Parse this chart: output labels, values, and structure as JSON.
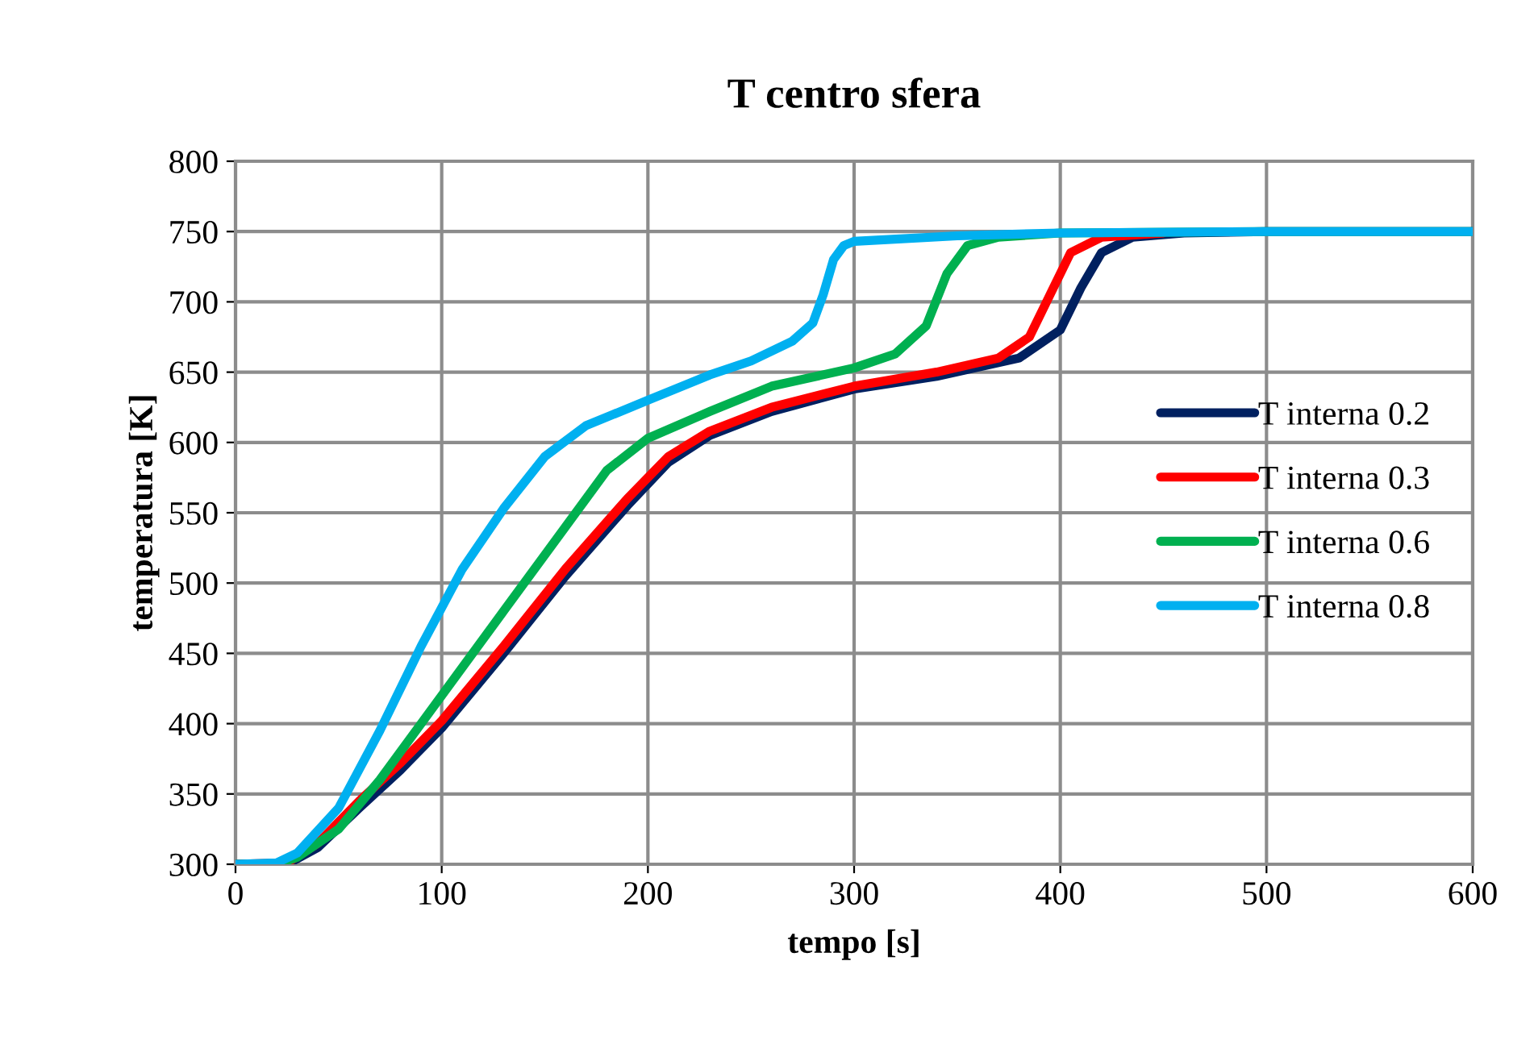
{
  "chart_data": {
    "type": "line",
    "title": "T centro sfera",
    "xlabel": "tempo [s]",
    "ylabel": "temperatura [K]",
    "xlim": [
      0,
      600
    ],
    "xticks": [
      0,
      100,
      200,
      300,
      400,
      500,
      600
    ],
    "ylim": [
      300,
      800
    ],
    "yticks": [
      300,
      350,
      400,
      450,
      500,
      550,
      600,
      650,
      700,
      750,
      800
    ],
    "grid": true,
    "legend": "right",
    "marker": "none",
    "line_style": "solid",
    "series": [
      {
        "name": "T interna 0.2",
        "color": "#002060",
        "x": [
          0,
          25,
          40,
          60,
          80,
          100,
          130,
          160,
          190,
          210,
          230,
          260,
          300,
          340,
          380,
          400,
          410,
          420,
          435,
          460,
          500,
          600
        ],
        "values": [
          300,
          300,
          312,
          340,
          367,
          397,
          450,
          505,
          555,
          586,
          605,
          622,
          638,
          647,
          660,
          680,
          710,
          735,
          746,
          749,
          750,
          750
        ]
      },
      {
        "name": "T interna 0.3",
        "color": "#ff0000",
        "x": [
          0,
          25,
          40,
          60,
          80,
          100,
          130,
          160,
          190,
          210,
          230,
          260,
          300,
          340,
          370,
          385,
          395,
          405,
          420,
          450
        ],
        "values": [
          300,
          301,
          315,
          345,
          372,
          402,
          455,
          510,
          560,
          590,
          608,
          625,
          640,
          650,
          660,
          675,
          705,
          735,
          746,
          749
        ]
      },
      {
        "name": "T interna 0.6",
        "color": "#00b050",
        "x": [
          0,
          20,
          30,
          50,
          70,
          100,
          130,
          160,
          180,
          200,
          230,
          260,
          300,
          320,
          335,
          345,
          355,
          370,
          400,
          500,
          600
        ],
        "values": [
          300,
          300,
          305,
          325,
          360,
          420,
          480,
          540,
          580,
          603,
          622,
          640,
          653,
          663,
          683,
          720,
          740,
          746,
          749,
          750,
          750
        ]
      },
      {
        "name": "T interna 0.8",
        "color": "#00b0f0",
        "x": [
          0,
          20,
          30,
          50,
          70,
          90,
          110,
          130,
          150,
          170,
          200,
          230,
          250,
          270,
          280,
          285,
          290,
          295,
          300,
          350,
          400,
          500,
          600
        ],
        "values": [
          300,
          301,
          308,
          340,
          395,
          455,
          510,
          553,
          590,
          612,
          630,
          648,
          658,
          672,
          685,
          705,
          730,
          740,
          743,
          747,
          749,
          750,
          750
        ]
      }
    ]
  }
}
